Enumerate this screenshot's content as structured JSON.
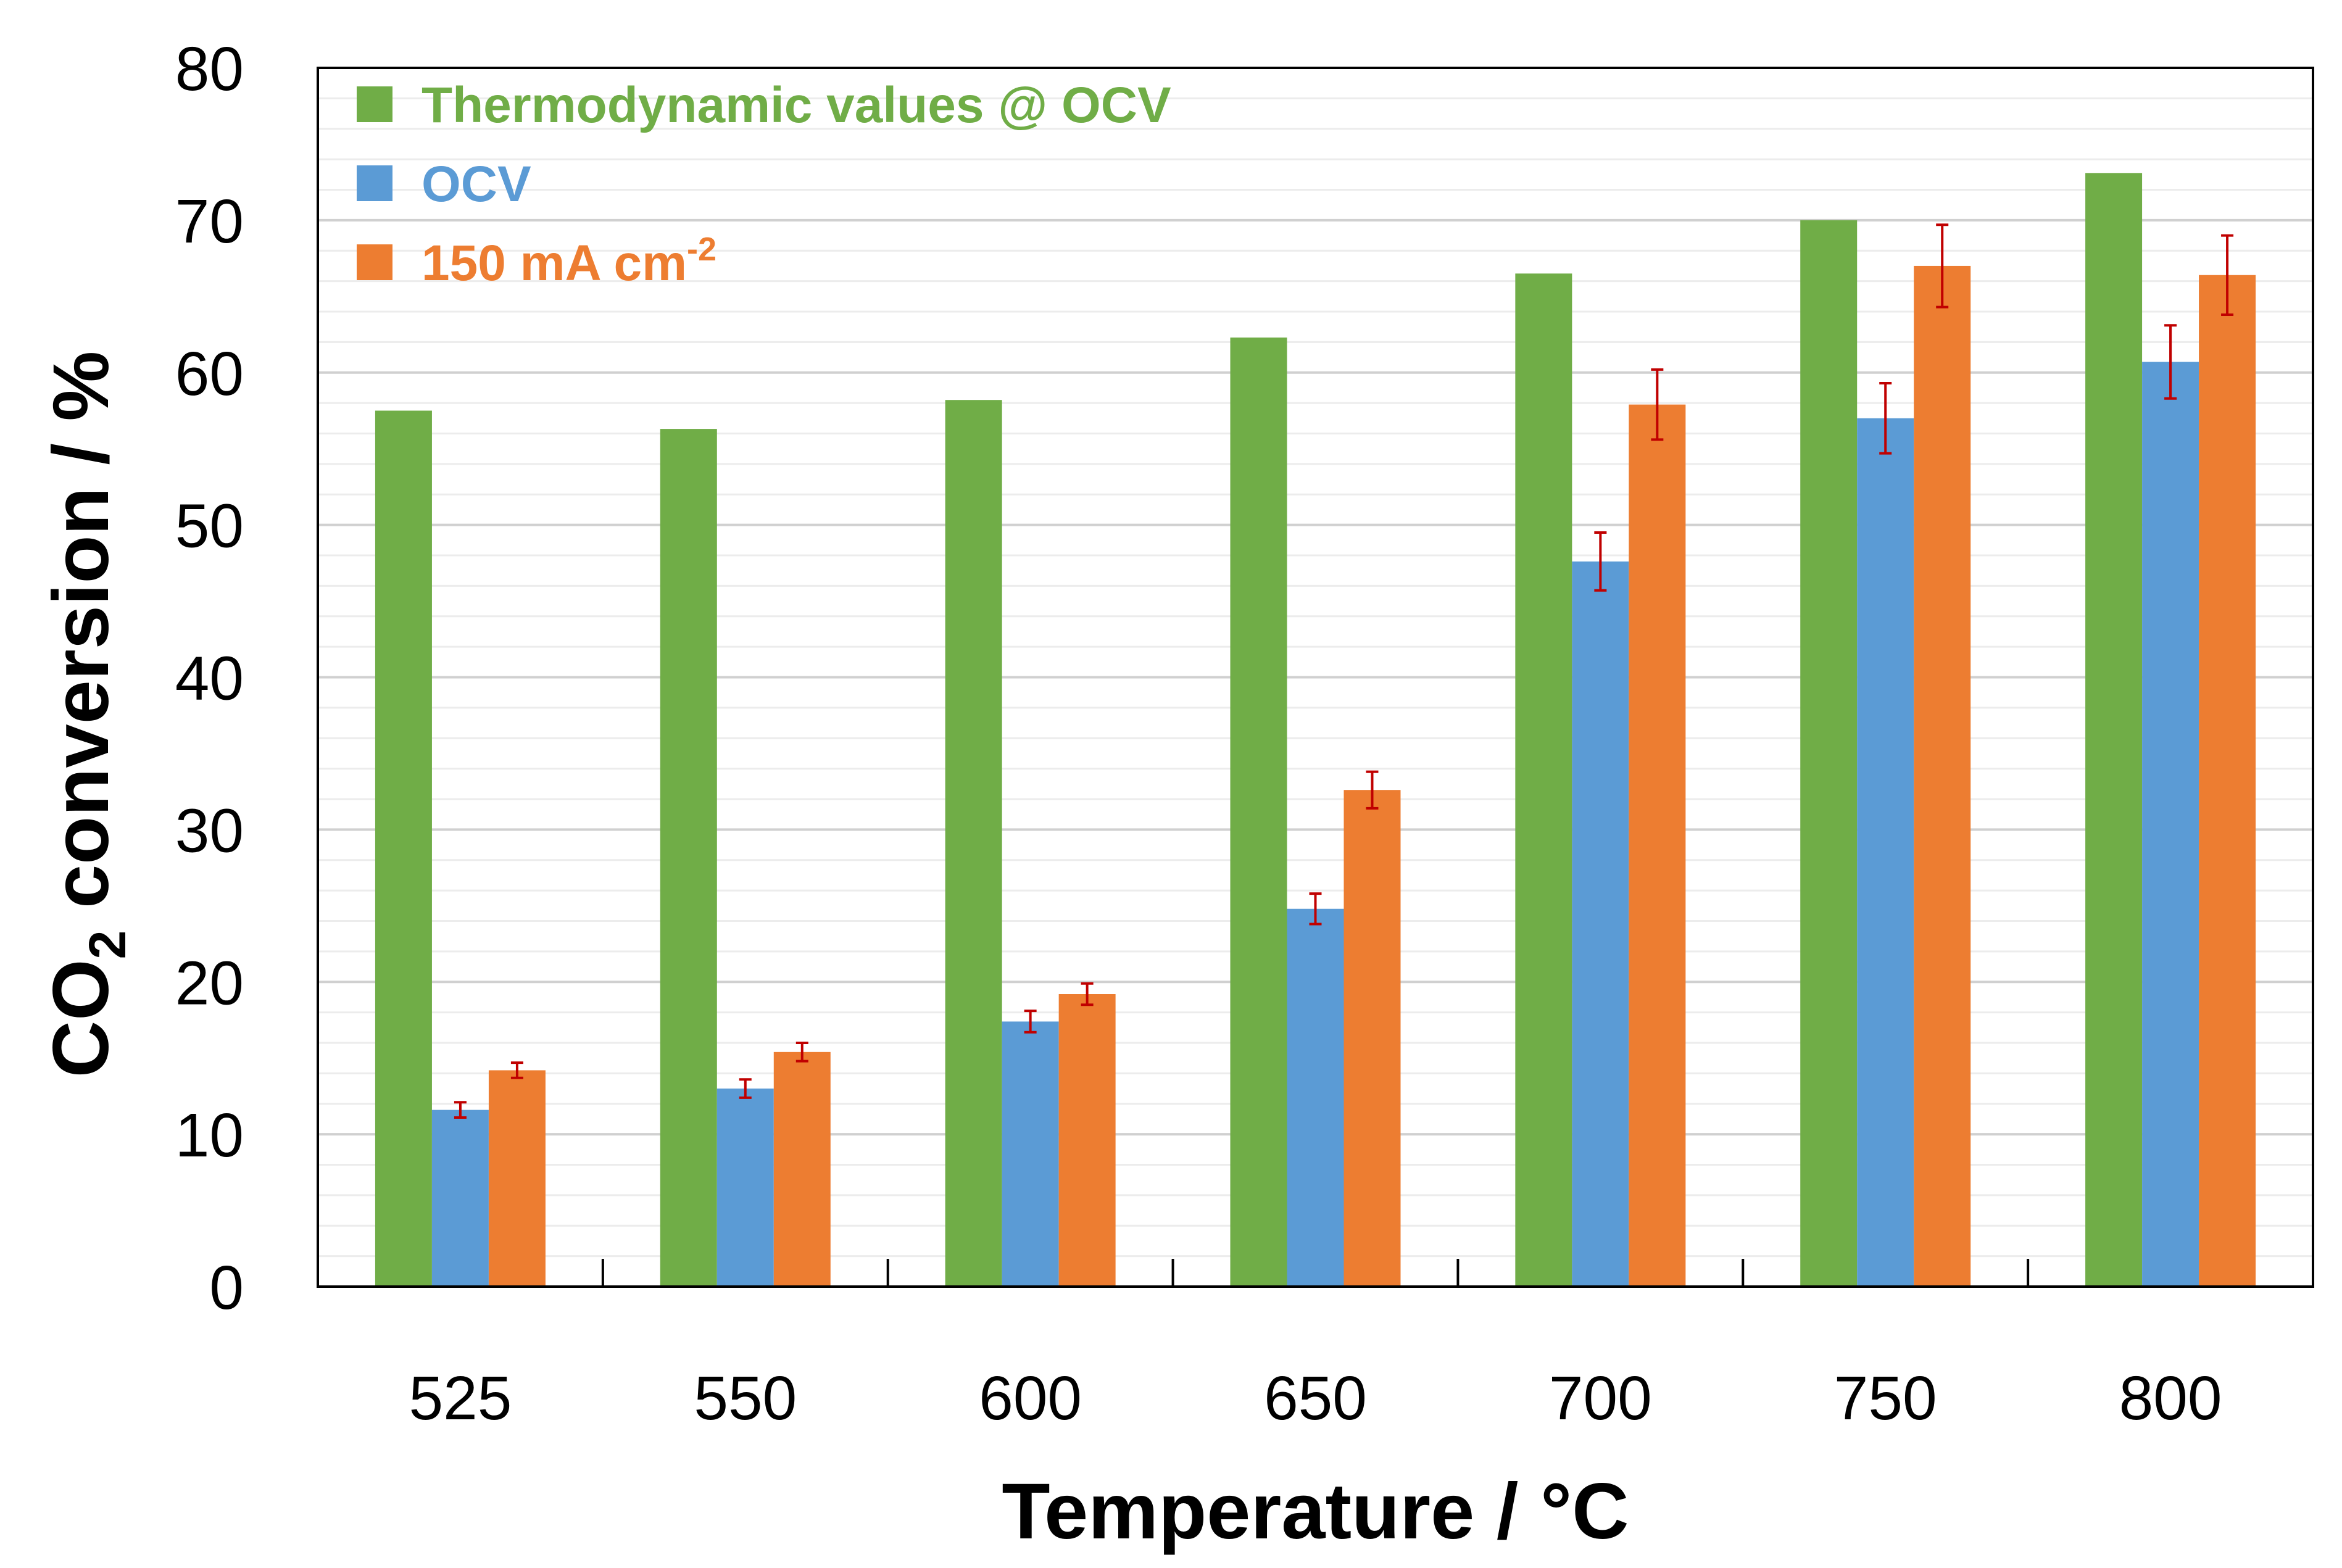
{
  "chart_data": {
    "type": "bar",
    "title": "",
    "xlabel": "Temperature / °C",
    "ylabel": {
      "prefix": "CO",
      "subscript": "2",
      "suffix": " conversion / %"
    },
    "categories": [
      "525",
      "550",
      "600",
      "650",
      "700",
      "750",
      "800"
    ],
    "ylim": [
      0,
      80
    ],
    "yticks": [
      0,
      10,
      20,
      30,
      40,
      50,
      60,
      70,
      80
    ],
    "minor_grid_step": 2,
    "legend_position": "top-left",
    "series": [
      {
        "name": "Thermodynamic values @ OCV",
        "color": "#70AD47",
        "values": [
          57.5,
          56.3,
          58.2,
          62.3,
          66.5,
          70.0,
          73.1
        ],
        "errors": null
      },
      {
        "name": "OCV",
        "color": "#5B9BD5",
        "values": [
          11.6,
          13.0,
          17.4,
          24.8,
          47.6,
          57.0,
          60.7
        ],
        "errors": [
          0.5,
          0.6,
          0.7,
          1.0,
          1.9,
          2.3,
          2.4
        ]
      },
      {
        "name": "150 mA cm",
        "name_superscript": "-2",
        "color": "#ED7D31",
        "values": [
          14.2,
          15.4,
          19.2,
          32.6,
          57.9,
          67.0,
          66.4
        ],
        "errors": [
          0.5,
          0.6,
          0.7,
          1.2,
          2.3,
          2.7,
          2.6
        ]
      }
    ],
    "error_bar_color": "#C00000"
  }
}
